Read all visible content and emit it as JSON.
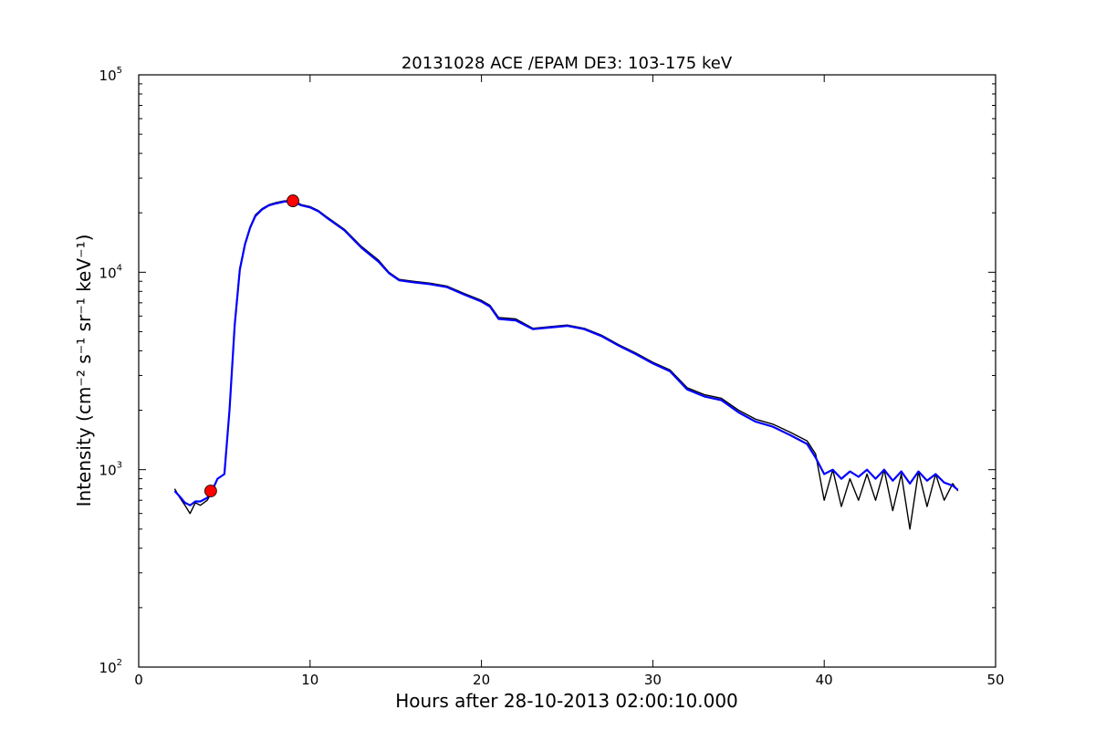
{
  "chart_data": {
    "type": "line",
    "title": "20131028 ACE /EPAM DE3: 103-175 keV",
    "xlabel": "Hours after 28-10-2013 02:00:10.000",
    "ylabel": "Intensity (cm⁻² s⁻¹ sr⁻¹ keV⁻¹)",
    "xlim": [
      0,
      50
    ],
    "ylim": [
      100,
      100000
    ],
    "yscale": "log",
    "grid": false,
    "x_ticks": [
      "0",
      "10",
      "20",
      "30",
      "40",
      "50"
    ],
    "y_ticks": [
      {
        "base": "10",
        "exp": "2"
      },
      {
        "base": "10",
        "exp": "3"
      },
      {
        "base": "10",
        "exp": "4"
      },
      {
        "base": "10",
        "exp": "5"
      }
    ],
    "series": [
      {
        "color": "#000000",
        "x": [
          2.1,
          2.4,
          2.7,
          3.0,
          3.3,
          3.6,
          4.0,
          4.3,
          4.6,
          5.0,
          5.3,
          5.6,
          5.9,
          6.2,
          6.5,
          6.8,
          7.2,
          7.6,
          8.0,
          8.5,
          9.0,
          9.5,
          10.0,
          10.5,
          11.0,
          12.0,
          13.0,
          14.0,
          14.6,
          15.2,
          16.0,
          17.0,
          18.0,
          19.0,
          20.0,
          20.5,
          21.0,
          22.0,
          23.0,
          24.0,
          25.0,
          26.0,
          27.0,
          28.0,
          29.0,
          30.0,
          31.0,
          32.0,
          33.0,
          34.0,
          35.0,
          36.0,
          37.0,
          38.0,
          39.0,
          39.5,
          40.0,
          40.5,
          41.0,
          41.5,
          42.0,
          42.5,
          43.0,
          43.5,
          44.0,
          44.5,
          45.0,
          45.5,
          46.0,
          46.5,
          47.0,
          47.5,
          47.8
        ],
        "y": [
          800,
          720,
          660,
          600,
          680,
          660,
          700,
          780,
          900,
          950,
          2000,
          5500,
          10500,
          14000,
          17000,
          19500,
          21000,
          22000,
          22500,
          23000,
          23000,
          22000,
          21500,
          20500,
          19000,
          16500,
          13500,
          11500,
          10000,
          9200,
          9000,
          8800,
          8500,
          7800,
          7200,
          6800,
          5900,
          5800,
          5200,
          5300,
          5400,
          5200,
          4800,
          4300,
          3900,
          3500,
          3200,
          2600,
          2400,
          2300,
          2000,
          1800,
          1700,
          1550,
          1400,
          1200,
          700,
          1000,
          650,
          900,
          700,
          950,
          700,
          1000,
          620,
          950,
          500,
          980,
          650,
          950,
          700,
          850,
          780
        ]
      },
      {
        "color": "#0000ff",
        "x": [
          2.1,
          2.4,
          2.7,
          3.0,
          3.3,
          3.6,
          4.0,
          4.3,
          4.6,
          5.0,
          5.3,
          5.6,
          5.9,
          6.2,
          6.5,
          6.8,
          7.2,
          7.6,
          8.0,
          8.5,
          9.0,
          9.5,
          10.0,
          10.5,
          11.0,
          12.0,
          13.0,
          14.0,
          14.6,
          15.2,
          16.0,
          17.0,
          18.0,
          19.0,
          20.0,
          20.5,
          21.0,
          22.0,
          23.0,
          24.0,
          25.0,
          26.0,
          27.0,
          28.0,
          29.0,
          30.0,
          31.0,
          32.0,
          33.0,
          34.0,
          35.0,
          36.0,
          37.0,
          38.0,
          39.0,
          39.5,
          40.0,
          40.5,
          41.0,
          41.5,
          42.0,
          42.5,
          43.0,
          43.5,
          44.0,
          44.5,
          45.0,
          45.5,
          46.0,
          46.5,
          47.0,
          47.5,
          47.8
        ],
        "y": [
          780,
          730,
          680,
          660,
          690,
          690,
          720,
          790,
          900,
          950,
          2000,
          5400,
          10300,
          13800,
          16800,
          19200,
          20800,
          21800,
          22300,
          22800,
          22800,
          21800,
          21300,
          20300,
          18800,
          16300,
          13300,
          11300,
          9900,
          9100,
          8900,
          8700,
          8400,
          7700,
          7100,
          6700,
          5800,
          5700,
          5150,
          5250,
          5350,
          5150,
          4750,
          4250,
          3850,
          3450,
          3150,
          2550,
          2350,
          2250,
          1950,
          1750,
          1650,
          1500,
          1350,
          1150,
          950,
          1000,
          900,
          980,
          920,
          1000,
          900,
          1000,
          880,
          980,
          850,
          980,
          880,
          950,
          860,
          830,
          790
        ]
      }
    ],
    "markers": [
      {
        "x": 4.2,
        "y": 780,
        "color": "#ff0000"
      },
      {
        "x": 9.0,
        "y": 23000,
        "color": "#ff0000"
      }
    ]
  }
}
